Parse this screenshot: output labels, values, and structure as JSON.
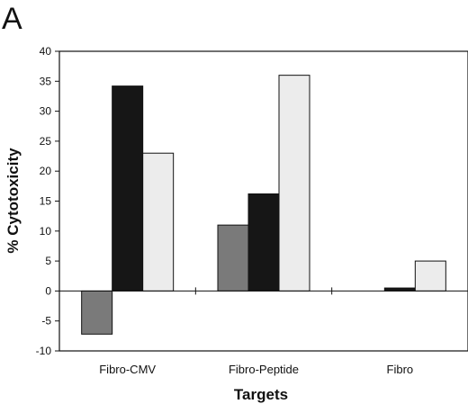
{
  "panel_label": "A",
  "chart_data": {
    "type": "bar",
    "categories": [
      "Fibro-CMV",
      "Fibro-Peptide",
      "Fibro"
    ],
    "series": [
      {
        "values": [
          -7.2,
          11,
          0
        ],
        "color": "#7a7a7a"
      },
      {
        "values": [
          34.2,
          16.2,
          0.5
        ],
        "color": "#161616"
      },
      {
        "values": [
          23,
          36,
          5
        ],
        "color": "#ececec"
      }
    ],
    "xlabel": "Targets",
    "ylabel": "% Cytotoxicity",
    "ylim": [
      -10,
      40
    ],
    "yticks": [
      -10,
      -5,
      0,
      5,
      10,
      15,
      20,
      25,
      30,
      35,
      40
    ],
    "ytick_labels": [
      "-10",
      "-5",
      "0",
      "5",
      "10",
      "15",
      "20",
      "25",
      "30",
      "35",
      "40"
    ],
    "grid": false,
    "legend": "none"
  }
}
